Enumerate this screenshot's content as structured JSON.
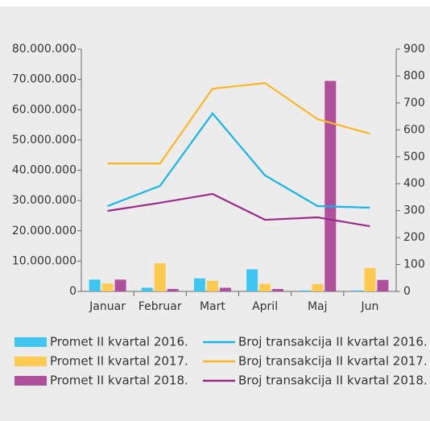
{
  "chart_data": {
    "type": "bar",
    "categories": [
      "Januar",
      "Februar",
      "Mart",
      "April",
      "Maj",
      "Jun"
    ],
    "series": [
      {
        "name": "Promet II kvartal 2016.",
        "type": "bar",
        "color": "#3ec6f0",
        "values": [
          3900000,
          1200000,
          4300000,
          7300000,
          300000,
          300000
        ]
      },
      {
        "name": "Promet II kvartal 2017.",
        "type": "bar",
        "color": "#fdc94f",
        "values": [
          2600000,
          9300000,
          3500000,
          2500000,
          2400000,
          7700000
        ]
      },
      {
        "name": "Promet II kvartal 2018.",
        "type": "bar",
        "color": "#b0509c",
        "values": [
          3900000,
          800000,
          1200000,
          800000,
          69500000,
          3800000
        ]
      },
      {
        "name": "Broj transakcija II kvartal 2016.",
        "type": "line",
        "axis": "y2",
        "color": "#16b5ea",
        "values": [
          317,
          392,
          661,
          431,
          317,
          311
        ]
      },
      {
        "name": "Broj transakcija II kvartal 2017.",
        "type": "line",
        "axis": "y2",
        "color": "#fbb626",
        "values": [
          475,
          475,
          753,
          774,
          640,
          586
        ]
      },
      {
        "name": "Broj transakcija II kvartal 2018.",
        "type": "line",
        "axis": "y2",
        "color": "#9b2a8a",
        "values": [
          299,
          329,
          362,
          266,
          275,
          242
        ]
      }
    ],
    "ylim": [
      0,
      80000000
    ],
    "yticks": [
      0,
      {
        "value": 10000000,
        "label": "10.000.000"
      },
      {
        "value": 20000000,
        "label": "20.000.000"
      },
      {
        "value": 30000000,
        "label": "30.000.000"
      },
      {
        "value": 40000000,
        "label": "40.000.000"
      },
      {
        "value": 50000000,
        "label": "50.000.000"
      },
      {
        "value": 60000000,
        "label": "60.000.000"
      },
      {
        "value": 70000000,
        "label": "70.000.000"
      },
      {
        "value": 80000000,
        "label": "80.000.000"
      }
    ],
    "y2lim": [
      0,
      900
    ],
    "y2ticks": [
      0,
      100,
      200,
      300,
      400,
      500,
      600,
      700,
      800,
      900
    ]
  }
}
